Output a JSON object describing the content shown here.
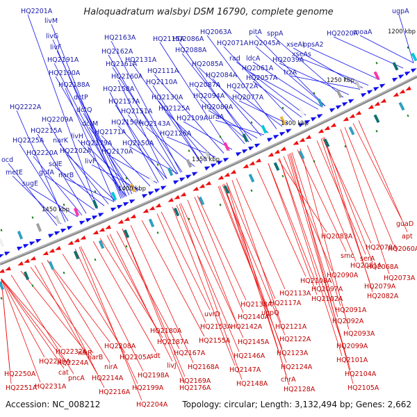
{
  "title": "Haloquadratum walsbyi DSM 16790, complete genome",
  "footer": {
    "accession": "Accession: NC_008212",
    "summary": "Topology: circular; Length: 3,132,494 bp; Genes: 2,662"
  },
  "colors": {
    "forward_strand": "#1010ee",
    "reverse_strand": "#ee1010",
    "backbone": "#888888",
    "marker": "#1a7a1a"
  },
  "kbp_markers": [
    "1200 kbp",
    "1250 kbp",
    "1300 kbp",
    "1350 kbp",
    "1400 kbp",
    "1450 kbp"
  ],
  "blue_labels": [
    "HQ2201A",
    "livM",
    "livG",
    "livF",
    "HQ2191A",
    "HQ2190A",
    "HQ2188A",
    "dctP",
    "dctQ",
    "dctM",
    "livH",
    "HQ2179A",
    "livF",
    "HQ2163A",
    "HQ2162A",
    "HQ2161A",
    "HQ2160A",
    "HQ2158A",
    "HQ2157A",
    "HQ2151A",
    "HQ2159A",
    "HQ2171A",
    "HQ2170A",
    "HQ2150A",
    "HQ2222A",
    "HQ2209A",
    "HQ2215A",
    "narK",
    "HQ2225A",
    "HQ2220A",
    "HQ2202A",
    "sqlE",
    "gufA",
    "narB",
    "ocd",
    "metE",
    "sugE",
    "HQ2115A",
    "HQ2131A",
    "HQ2111A",
    "HQ2110A",
    "HQ2130A",
    "HQ2125A",
    "HQ2143A",
    "HQ2126A",
    "HQ2109A",
    "HQ2086A",
    "HQ2088A",
    "HQ2085A",
    "HQ2084A",
    "HQ2087A",
    "HQ2094A",
    "HQ2089A",
    "uraA",
    "HQ2063A",
    "HQ2071A",
    "pitA",
    "HQ2045A",
    "sppA",
    "xseAl",
    "ppsA2",
    "HQ2020A",
    "moaA",
    "ugpA",
    "rad",
    "ldcA",
    "HQ2061A",
    "HQ2057A",
    "HQ2072A",
    "HQ2077A",
    "xseAs",
    "HQ2039A",
    "trzA"
  ],
  "red_labels": [
    "guaD",
    "apt",
    "HQ2083A",
    "HQ2078A",
    "HQ2060A",
    "smc",
    "serA",
    "HQ2081A",
    "HQ2068A",
    "HQ2073A",
    "HQ2090A",
    "HQ2079A",
    "HQ2097A",
    "HQ2082A",
    "HQ2102A",
    "HQ2108A",
    "HQ2091A",
    "HQ2092A",
    "HQ2093A",
    "HQ2113A",
    "HQ2117A",
    "HQ2138A",
    "ugpQ",
    "HQ2140A",
    "HQ2121A",
    "HQ2142A",
    "HQ2122A",
    "uvrD",
    "HQ2153A",
    "HQ2145A",
    "HQ2155A",
    "HQ2146A",
    "HQ2123A",
    "HQ2124A",
    "HQ2147A",
    "chrA",
    "HQ2128A",
    "HQ2148A",
    "HQ2099A",
    "HQ2101A",
    "HQ2104A",
    "HQ2105A",
    "HQ2180A",
    "HQ2187A",
    "HQ2167A",
    "HQ2168A",
    "HQ2169A",
    "HQ2176A",
    "sdt",
    "livJ",
    "HQ2208A",
    "HQ2205A",
    "HQ2198A",
    "HQ2199A",
    "HQ2204A",
    "narB",
    "nirA",
    "HQ2214A",
    "HQ2216A",
    "nikR",
    "HQ2224A",
    "HQ2232A",
    "HQ2239A",
    "cat",
    "pncA",
    "HQ2231A",
    "HQ2250A",
    "HQ2251A"
  ]
}
